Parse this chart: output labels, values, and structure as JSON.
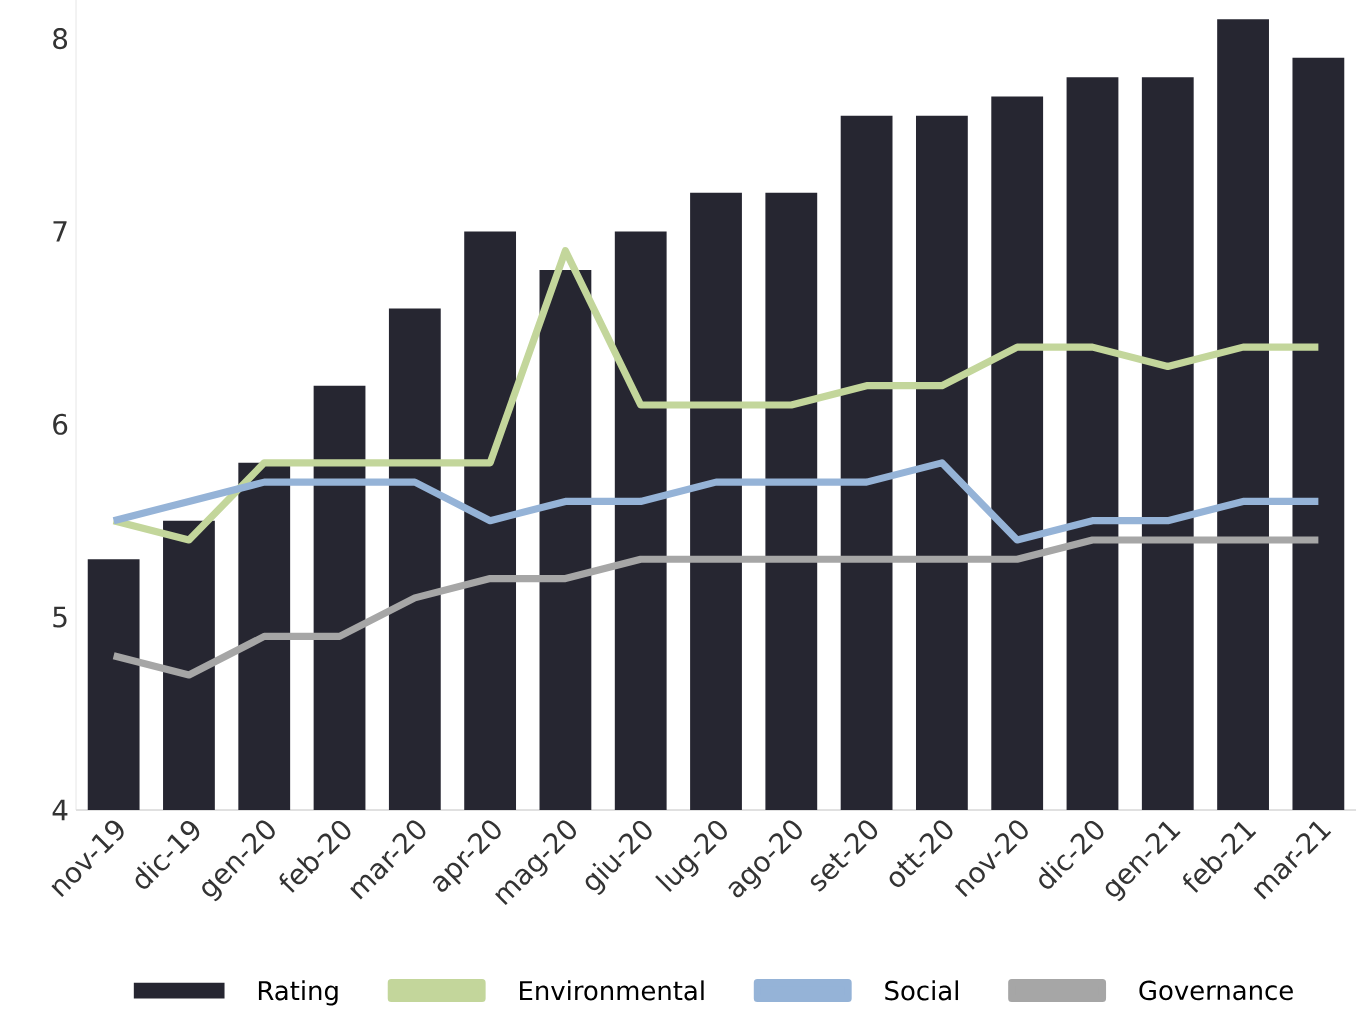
{
  "chart_data": {
    "type": "bar",
    "categories": [
      "nov-19",
      "dic-19",
      "gen-20",
      "feb-20",
      "mar-20",
      "apr-20",
      "mag-20",
      "giu-20",
      "lug-20",
      "ago-20",
      "set-20",
      "ott-20",
      "nov-20",
      "dic-20",
      "gen-21",
      "feb-21",
      "mar-21"
    ],
    "series": [
      {
        "name": "Rating",
        "color": "#262631",
        "values": [
          5.3,
          5.5,
          5.8,
          6.2,
          6.6,
          7.0,
          6.8,
          7.0,
          7.2,
          7.2,
          7.6,
          7.6,
          7.7,
          7.8,
          7.8,
          8.1,
          7.9
        ]
      },
      {
        "name": "Environmental",
        "type": "line",
        "color": "#c3d69b",
        "values": [
          5.5,
          5.4,
          5.8,
          5.8,
          5.8,
          5.8,
          6.9,
          6.1,
          6.1,
          6.1,
          6.2,
          6.2,
          6.4,
          6.4,
          6.3,
          6.4,
          6.4
        ]
      },
      {
        "name": "Social",
        "type": "line",
        "color": "#95b3d7",
        "values": [
          5.5,
          5.6,
          5.7,
          5.7,
          5.7,
          5.5,
          5.6,
          5.6,
          5.7,
          5.7,
          5.7,
          5.8,
          5.4,
          5.5,
          5.5,
          5.6,
          5.6
        ]
      },
      {
        "name": "Governance",
        "type": "line",
        "color": "#a6a6a6",
        "values": [
          4.8,
          4.7,
          4.9,
          4.9,
          5.1,
          5.2,
          5.2,
          5.3,
          5.3,
          5.3,
          5.3,
          5.3,
          5.3,
          5.4,
          5.4,
          5.4,
          5.4
        ]
      }
    ],
    "ylim": [
      4,
      8.2
    ],
    "yticks": [
      4,
      5,
      6,
      7,
      8
    ],
    "grid": false,
    "legend": "bottom",
    "marker": "none",
    "line_style": "solid"
  }
}
